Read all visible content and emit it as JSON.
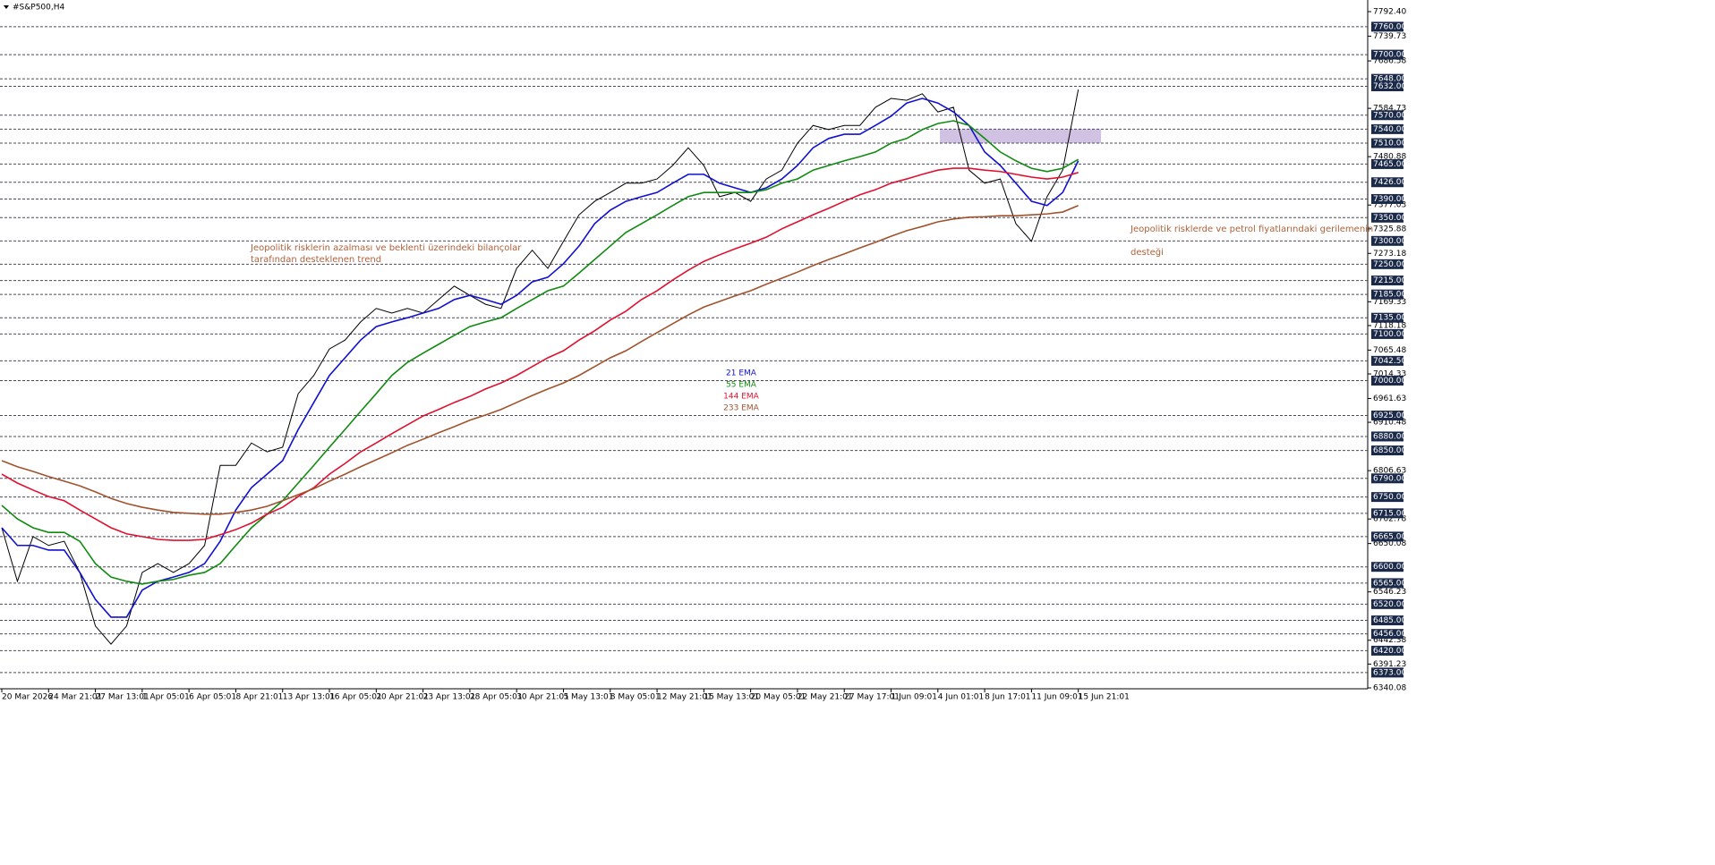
{
  "chart_data": {
    "type": "line",
    "title": "#S&P500,H4",
    "categories": [
      "20 Mar 2026",
      null,
      null,
      "24 Mar 21:01",
      null,
      null,
      "27 Mar 13:01",
      null,
      null,
      "1 Apr 05:01",
      null,
      null,
      "6 Apr 05:01",
      null,
      null,
      "8 Apr 21:01",
      null,
      null,
      "13 Apr 13:01",
      null,
      null,
      "16 Apr 05:01",
      null,
      null,
      "20 Apr 21:01",
      null,
      null,
      "23 Apr 13:01",
      null,
      null,
      "28 Apr 05:01",
      null,
      null,
      "30 Apr 21:01",
      null,
      null,
      "5 May 13:01",
      null,
      null,
      "8 May 05:01",
      null,
      null,
      "12 May 21:01",
      null,
      null,
      "15 May 13:01",
      null,
      null,
      "20 May 05:01",
      null,
      null,
      "22 May 21:01",
      null,
      null,
      "27 May 17:01",
      null,
      null,
      "1 Jun 09:01",
      null,
      null,
      "4 Jun 01:01",
      null,
      null,
      "8 Jun 17:01",
      null,
      null,
      "11 Jun 09:01",
      null,
      null,
      "15 Jun 21:01"
    ],
    "series": [
      {
        "color": "#000000",
        "values": [
          6684,
          6569,
          6665,
          6646,
          6655,
          6588,
          6473,
          6434,
          6473,
          6588,
          6607,
          6588,
          6607,
          6646,
          6818,
          6818,
          6866,
          6847,
          6857,
          6972,
          7011,
          7068,
          7087,
          7126,
          7155,
          7145,
          7155,
          7145,
          7174,
          7203,
          7183,
          7164,
          7155,
          7241,
          7280,
          7241,
          7299,
          7356,
          7385,
          7404,
          7424,
          7424,
          7433,
          7462,
          7500,
          7462,
          7395,
          7404,
          7385,
          7433,
          7452,
          7510,
          7548,
          7539,
          7548,
          7548,
          7587,
          7606,
          7602,
          7616,
          7577,
          7587,
          7452,
          7424,
          7433,
          7337,
          7299,
          7395,
          7452,
          7625
        ]
      },
      {
        "name": "21 EMA",
        "color": "#1010d0",
        "values": [
          6684,
          6646,
          6646,
          6636,
          6636,
          6588,
          6530,
          6492,
          6492,
          6550,
          6569,
          6578,
          6588,
          6607,
          6655,
          6722,
          6770,
          6799,
          6828,
          6895,
          6953,
          7011,
          7049,
          7087,
          7116,
          7126,
          7135,
          7145,
          7155,
          7174,
          7183,
          7174,
          7164,
          7183,
          7212,
          7222,
          7251,
          7289,
          7337,
          7366,
          7385,
          7395,
          7404,
          7424,
          7443,
          7443,
          7424,
          7414,
          7404,
          7414,
          7433,
          7462,
          7500,
          7520,
          7529,
          7529,
          7548,
          7568,
          7596,
          7606,
          7596,
          7577,
          7548,
          7491,
          7462,
          7424,
          7385,
          7376,
          7404,
          7472
        ]
      },
      {
        "name": "55 EMA",
        "color": "#118a11",
        "values": [
          6732,
          6703,
          6684,
          6674,
          6674,
          6655,
          6607,
          6578,
          6569,
          6563,
          6569,
          6573,
          6582,
          6588,
          6607,
          6646,
          6684,
          6713,
          6742,
          6780,
          6818,
          6857,
          6895,
          6934,
          6972,
          7011,
          7039,
          7059,
          7078,
          7097,
          7116,
          7126,
          7135,
          7155,
          7174,
          7193,
          7203,
          7231,
          7260,
          7289,
          7318,
          7337,
          7356,
          7376,
          7395,
          7404,
          7404,
          7404,
          7404,
          7410,
          7424,
          7433,
          7452,
          7462,
          7472,
          7481,
          7491,
          7510,
          7520,
          7539,
          7552,
          7558,
          7548,
          7520,
          7491,
          7472,
          7456,
          7449,
          7456,
          7475
        ]
      },
      {
        "name": "144 EMA",
        "color": "#e0102f",
        "values": [
          6799,
          6780,
          6765,
          6751,
          6742,
          6722,
          6703,
          6684,
          6671,
          6665,
          6659,
          6657,
          6657,
          6659,
          6669,
          6680,
          6694,
          6713,
          6728,
          6751,
          6770,
          6799,
          6822,
          6847,
          6866,
          6886,
          6905,
          6924,
          6938,
          6953,
          6966,
          6982,
          6995,
          7011,
          7030,
          7049,
          7064,
          7087,
          7107,
          7130,
          7149,
          7174,
          7193,
          7216,
          7237,
          7256,
          7270,
          7283,
          7295,
          7308,
          7326,
          7341,
          7356,
          7370,
          7385,
          7399,
          7410,
          7424,
          7433,
          7443,
          7452,
          7456,
          7456,
          7452,
          7449,
          7443,
          7437,
          7433,
          7437,
          7447
        ]
      },
      {
        "name": "233 EMA",
        "color": "#a0522d",
        "values": [
          6828,
          6815,
          6805,
          6794,
          6784,
          6774,
          6761,
          6747,
          6736,
          6728,
          6722,
          6717,
          6715,
          6713,
          6713,
          6717,
          6722,
          6730,
          6742,
          6755,
          6768,
          6784,
          6799,
          6815,
          6830,
          6845,
          6861,
          6874,
          6888,
          6901,
          6915,
          6926,
          6938,
          6953,
          6968,
          6982,
          6995,
          7011,
          7030,
          7049,
          7064,
          7084,
          7103,
          7122,
          7141,
          7158,
          7170,
          7182,
          7193,
          7207,
          7220,
          7233,
          7247,
          7260,
          7272,
          7285,
          7297,
          7310,
          7322,
          7331,
          7341,
          7347,
          7351,
          7352,
          7354,
          7354,
          7356,
          7358,
          7362,
          7376
        ]
      }
    ],
    "ylim": [
      6340.08,
      7792.4
    ],
    "yticks": [
      {
        "value": 7792.4,
        "label": "7792.40"
      },
      {
        "value": 7739.73,
        "label": "7739.73"
      },
      {
        "value": 7686.58,
        "label": "7686.58"
      },
      {
        "value": 7584.73,
        "label": "7584.73"
      },
      {
        "value": 7480.88,
        "label": "7480.88"
      },
      {
        "value": 7377.03,
        "label": "7377.03"
      },
      {
        "value": 7325.88,
        "label": "7325.88"
      },
      {
        "value": 7273.18,
        "label": "7273.18"
      },
      {
        "value": 7169.33,
        "label": "7169.33"
      },
      {
        "value": 7118.18,
        "label": "7118.18"
      },
      {
        "value": 7065.48,
        "label": "7065.48"
      },
      {
        "value": 7014.33,
        "label": "7014.33"
      },
      {
        "value": 6961.63,
        "label": "6961.63"
      },
      {
        "value": 6910.48,
        "label": "6910.48"
      },
      {
        "value": 6806.63,
        "label": "6806.63"
      },
      {
        "value": 6702.78,
        "label": "6702.78"
      },
      {
        "value": 6650.08,
        "label": "6650.08"
      },
      {
        "value": 6546.23,
        "label": "6546.23"
      },
      {
        "value": 6442.38,
        "label": "6442.38"
      },
      {
        "value": 6391.23,
        "label": "6391.23"
      },
      {
        "value": 6340.08,
        "label": "6340.08"
      }
    ],
    "levels": [
      {
        "value": 7760,
        "label": "7760.00"
      },
      {
        "value": 7700,
        "label": "7700.00"
      },
      {
        "value": 7648,
        "label": "7648.00"
      },
      {
        "value": 7632,
        "label": "7632.00"
      },
      {
        "value": 7570,
        "label": "7570.00"
      },
      {
        "value": 7540,
        "label": "7540.00"
      },
      {
        "value": 7510,
        "label": "7510.00"
      },
      {
        "value": 7465,
        "label": "7465.00"
      },
      {
        "value": 7426,
        "label": "7426.00"
      },
      {
        "value": 7390,
        "label": "7390.00"
      },
      {
        "value": 7350,
        "label": "7350.00"
      },
      {
        "value": 7300,
        "label": "7300.00"
      },
      {
        "value": 7250,
        "label": "7250.00"
      },
      {
        "value": 7215,
        "label": "7215.00"
      },
      {
        "value": 7185,
        "label": "7185.00"
      },
      {
        "value": 7135,
        "label": "7135.00"
      },
      {
        "value": 7100,
        "label": "7100.00"
      },
      {
        "value": 7042.5,
        "label": "7042.50"
      },
      {
        "value": 7000,
        "label": "7000.00"
      },
      {
        "value": 6925,
        "label": "6925.00"
      },
      {
        "value": 6880,
        "label": "6880.00"
      },
      {
        "value": 6850,
        "label": "6850.00"
      },
      {
        "value": 6790,
        "label": "6790.00"
      },
      {
        "value": 6750,
        "label": "6750.00"
      },
      {
        "value": 6715,
        "label": "6715.00"
      },
      {
        "value": 6665,
        "label": "6665.00"
      },
      {
        "value": 6600,
        "label": "6600.00"
      },
      {
        "value": 6565,
        "label": "6565.00"
      },
      {
        "value": 6520,
        "label": "6520.00"
      },
      {
        "value": 6485,
        "label": "6485.00"
      },
      {
        "value": 6456,
        "label": "6456.00"
      },
      {
        "value": 6420,
        "label": "6420.00"
      },
      {
        "value": 6373,
        "label": "6373.00"
      }
    ],
    "zone": {
      "ymin": 7510,
      "ymax": 7540,
      "color": "#c9b6dd"
    },
    "annotations": [
      "Jeopolitik risklerin azalması ve beklenti üzerindeki bilançolar",
      "tarafından desteklenen trend",
      "Jeopolitik risklerde ve petrol fiyatlarındaki gerilemenin",
      "desteği"
    ],
    "annotation_color": "#b0603a",
    "grid": true
  }
}
